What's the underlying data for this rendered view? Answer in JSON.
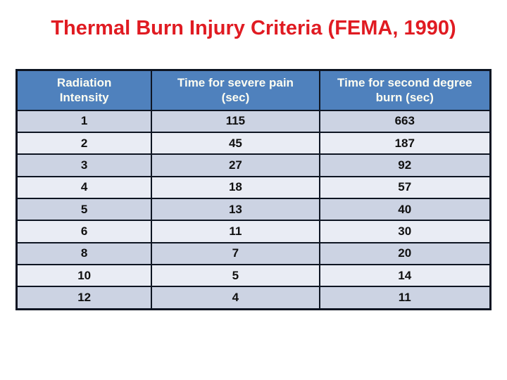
{
  "slide": {
    "title": "Thermal Burn Injury Criteria (FEMA, 1990)"
  },
  "table": {
    "columns": [
      "Radiation\nIntensity",
      "Time for severe pain\n(sec)",
      "Time for second degree\nburn (sec)"
    ],
    "rows": [
      [
        "1",
        "115",
        "663"
      ],
      [
        "2",
        "45",
        "187"
      ],
      [
        "3",
        "27",
        "92"
      ],
      [
        "4",
        "18",
        "57"
      ],
      [
        "5",
        "13",
        "40"
      ],
      [
        "6",
        "11",
        "30"
      ],
      [
        "8",
        "7",
        "20"
      ],
      [
        "10",
        "5",
        "14"
      ],
      [
        "12",
        "4",
        "11"
      ]
    ]
  },
  "chart_data": {
    "type": "table",
    "title": "Thermal Burn Injury Criteria (FEMA, 1990)",
    "columns": [
      "Radiation Intensity",
      "Time for severe pain (sec)",
      "Time for second degree burn (sec)"
    ],
    "radiation_intensity": [
      1,
      2,
      3,
      4,
      5,
      6,
      8,
      10,
      12
    ],
    "time_severe_pain_sec": [
      115,
      45,
      27,
      18,
      13,
      11,
      7,
      5,
      4
    ],
    "time_second_degree_burn_sec": [
      663,
      187,
      92,
      57,
      40,
      30,
      20,
      14,
      11
    ]
  },
  "colors": {
    "title_red": "#e01b22",
    "header_blue": "#4f81bd",
    "row_dark": "#ccd3e3",
    "row_light": "#e9ecf4",
    "border_color": "#0e1522",
    "header_text": "#fdfdf2",
    "cell_text": "#101010"
  }
}
